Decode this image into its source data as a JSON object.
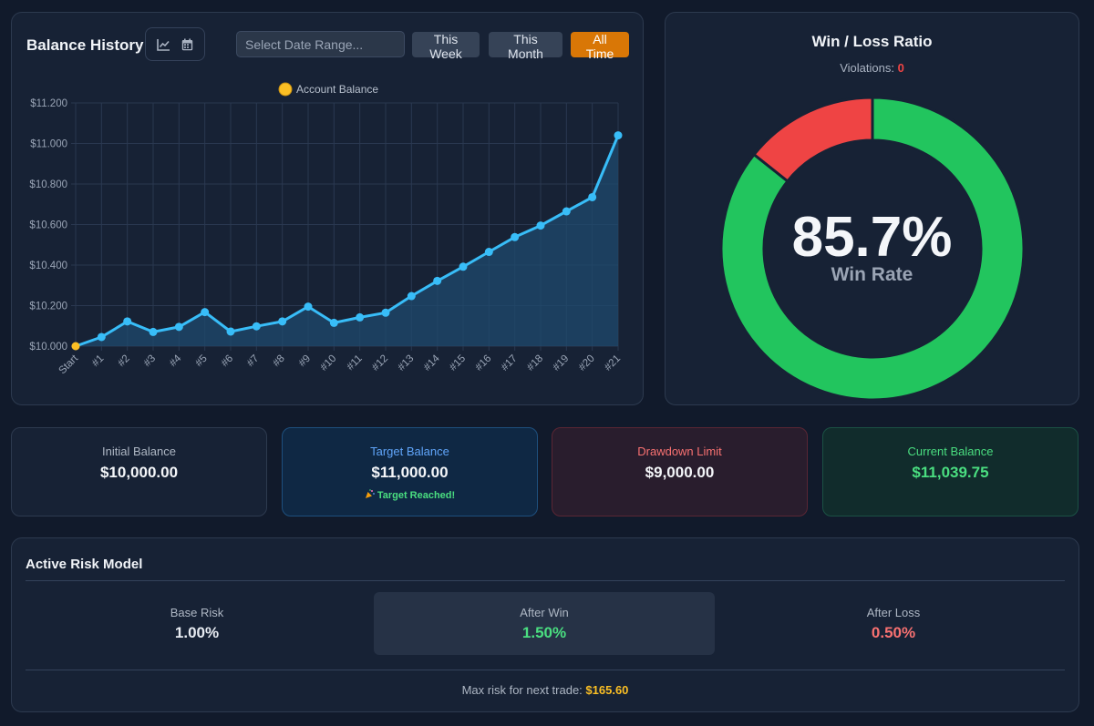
{
  "balance_history": {
    "title": "Balance History",
    "icons": [
      "chart-line-icon",
      "calendar-icon"
    ],
    "date_placeholder": "Select Date Range...",
    "buttons": {
      "week": "This Week",
      "month": "This Month",
      "all": "All Time"
    }
  },
  "chart_data": {
    "type": "line",
    "title": "",
    "legend": "Account Balance",
    "categories": [
      "Start",
      "#1",
      "#2",
      "#3",
      "#4",
      "#5",
      "#6",
      "#7",
      "#8",
      "#9",
      "#10",
      "#11",
      "#12",
      "#13",
      "#14",
      "#15",
      "#16",
      "#17",
      "#18",
      "#19",
      "#20",
      "#21"
    ],
    "series": [
      {
        "name": "Account Balance",
        "values": [
          10000,
          10045,
          10122,
          10070,
          10095,
          10168,
          10072,
          10098,
          10122,
          10195,
          10115,
          10142,
          10165,
          10247,
          10322,
          10392,
          10465,
          10538,
          10595,
          10665,
          10735,
          11040
        ]
      }
    ],
    "yticks": [
      "$11.200",
      "$11.000",
      "$10.800",
      "$10.600",
      "$10.400",
      "$10.200",
      "$10.000"
    ],
    "ylim": [
      10000,
      11200
    ],
    "grid": true,
    "colors": {
      "line": "#38bdf8",
      "fill": "#1f4a6e",
      "start_point": "#fbbf24",
      "grid": "#2a3850"
    }
  },
  "win_loss": {
    "title": "Win / Loss Ratio",
    "violations_label": "Violations:",
    "violations_value": "0",
    "win_rate_text": "85.7%",
    "win_rate_label": "Win Rate",
    "win_fraction": 0.857,
    "colors": {
      "win": "#22c55e",
      "loss": "#ef4444"
    }
  },
  "stats": {
    "initial": {
      "label": "Initial Balance",
      "value": "$10,000.00"
    },
    "target": {
      "label": "Target Balance",
      "value": "$11,000.00",
      "note": "Target Reached!",
      "note_icon": "party-popper-icon"
    },
    "drawdown": {
      "label": "Drawdown Limit",
      "value": "$9,000.00"
    },
    "current": {
      "label": "Current Balance",
      "value": "$11,039.75"
    }
  },
  "risk_model": {
    "title": "Active Risk Model",
    "base": {
      "label": "Base Risk",
      "value": "1.00%"
    },
    "after_win": {
      "label": "After Win",
      "value": "1.50%"
    },
    "after_loss": {
      "label": "After Loss",
      "value": "0.50%"
    },
    "footer_label": "Max risk for next trade:",
    "footer_value": "$165.60"
  }
}
